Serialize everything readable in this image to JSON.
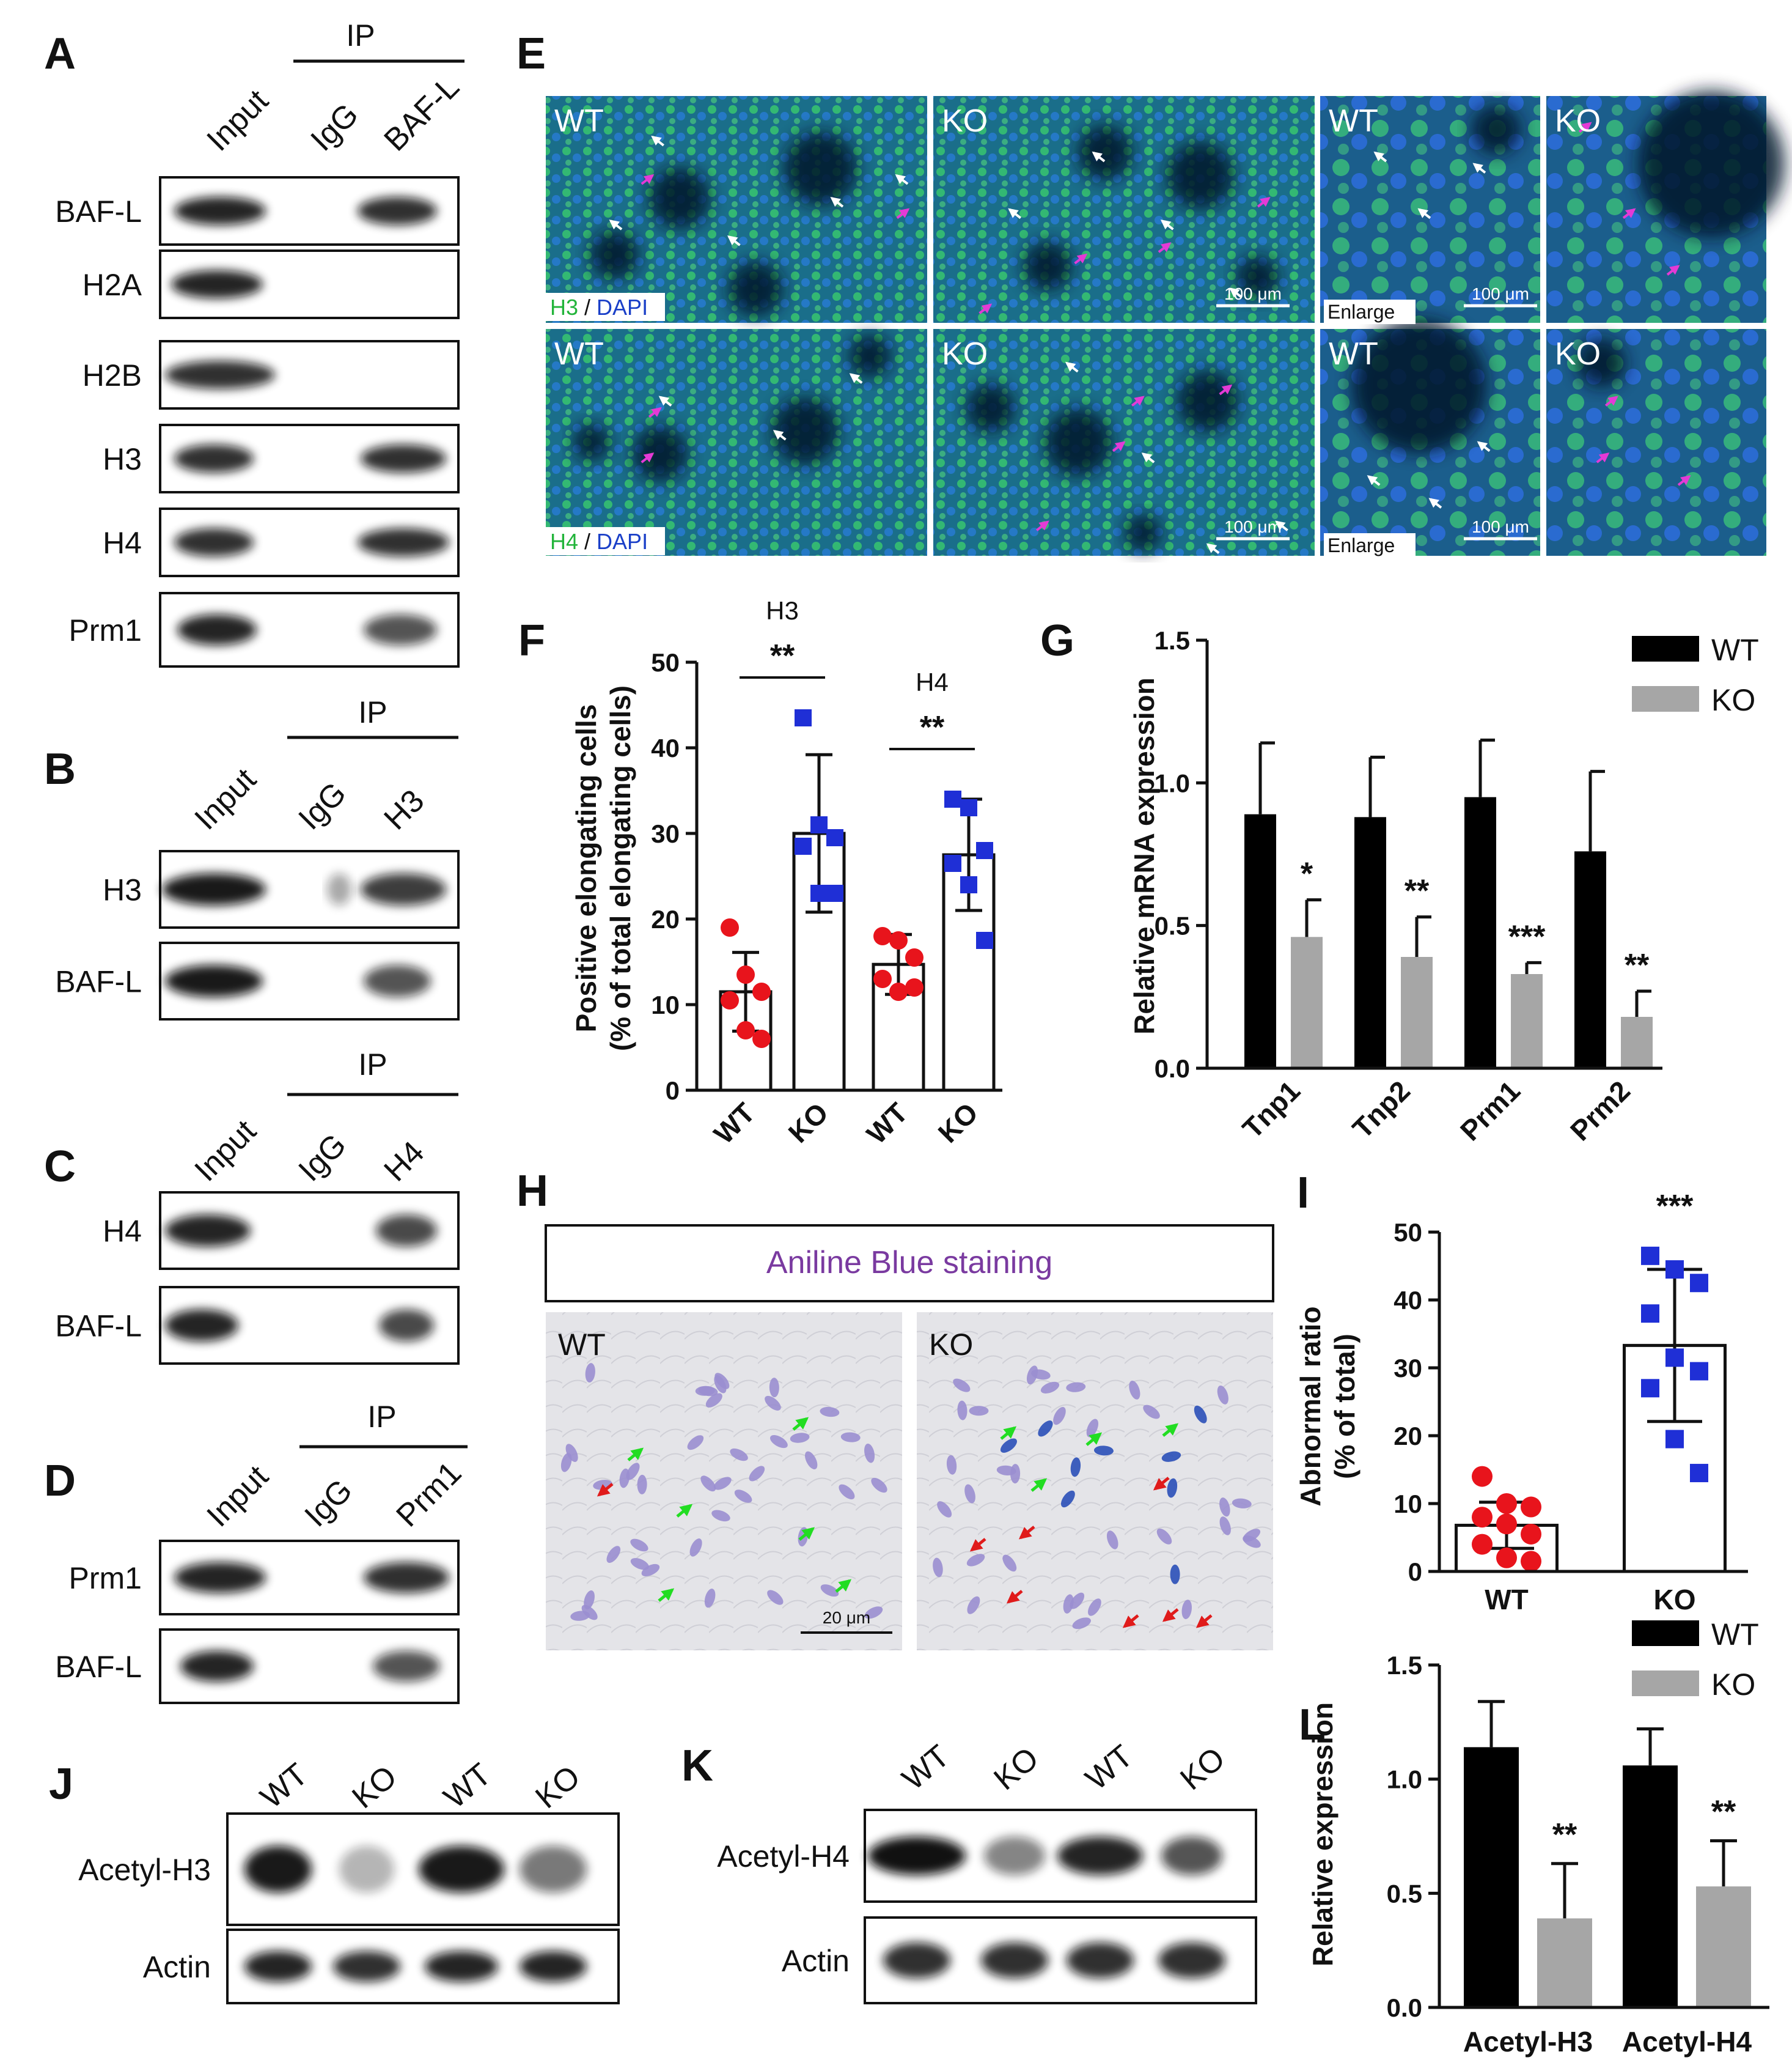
{
  "panels": {
    "A": {
      "letter": "A",
      "ip": "IP",
      "lanes": [
        "Input",
        "IgG",
        "BAF-L"
      ],
      "rows": [
        "BAF-L",
        "H2A",
        "H2B",
        "H3",
        "H4",
        "Prm1"
      ]
    },
    "B": {
      "letter": "B",
      "ip": "IP",
      "lanes": [
        "Input",
        "IgG",
        "H3"
      ],
      "rows": [
        "H3",
        "BAF-L"
      ]
    },
    "C": {
      "letter": "C",
      "ip": "IP",
      "lanes": [
        "Input",
        "IgG",
        "H4"
      ],
      "rows": [
        "H4",
        "BAF-L"
      ]
    },
    "D": {
      "letter": "D",
      "ip": "IP",
      "lanes": [
        "Input",
        "IgG",
        "Prm1"
      ],
      "rows": [
        "Prm1",
        "BAF-L"
      ]
    },
    "E": {
      "letter": "E",
      "tiles": [
        {
          "label": "WT"
        },
        {
          "label": "KO"
        },
        {
          "label": "WT"
        },
        {
          "label": "KO"
        },
        {
          "label": "WT"
        },
        {
          "label": "KO"
        },
        {
          "label": "WT"
        },
        {
          "label": "KO"
        }
      ],
      "stain_row1": [
        "H3",
        " / ",
        "DAPI"
      ],
      "stain_row2": [
        "H4",
        " / ",
        "DAPI"
      ],
      "scale": "100 μm",
      "enlarge": "Enlarge"
    },
    "H": {
      "letter": "H",
      "title": "Aniline Blue staining",
      "wt": "WT",
      "ko": "KO",
      "scale": "20 μm"
    },
    "J": {
      "letter": "J",
      "lanes": [
        "WT",
        "KO",
        "WT",
        "KO"
      ],
      "rows": [
        "Acetyl-H3",
        "Actin"
      ]
    },
    "K": {
      "letter": "K",
      "lanes": [
        "WT",
        "KO",
        "WT",
        "KO"
      ],
      "rows": [
        "Acetyl-H4",
        "Actin"
      ]
    }
  },
  "colors": {
    "wt_bar": "#000000",
    "ko_bar": "#a6a6a6",
    "wt_dot": "#e8141c",
    "ko_dot": "#1f2fd6",
    "if_green": "#2fbf4a",
    "if_blue": "#1a3fc8",
    "arrow_white": "#ffffff",
    "arrow_magenta": "#e43ad6",
    "arrow_green": "#22dd22",
    "arrow_red": "#e01b1b",
    "aniline_title": "#7a3aa0"
  },
  "chart_data": [
    {
      "panel": "F",
      "letter": "F",
      "type": "bar",
      "categories": [
        "WT",
        "KO",
        "WT",
        "KO"
      ],
      "ylabel": "Positive elongating cells",
      "ylabel2": "(% of total elongating cells)",
      "ylim": [
        0,
        50
      ],
      "yticks": [
        0,
        10,
        20,
        30,
        40,
        50
      ],
      "groups": [
        {
          "name": "H3",
          "sig": "**"
        },
        {
          "name": "H4",
          "sig": "**"
        }
      ],
      "values": [
        11.5,
        30,
        14.7,
        27.5
      ],
      "errors": [
        4.6,
        9.2,
        3.5,
        6.5
      ],
      "points": [
        [
          19,
          13.5,
          11.5,
          10.5,
          7,
          6
        ],
        [
          43.5,
          31,
          29.5,
          28.5,
          23,
          23
        ],
        [
          18,
          17.5,
          15.5,
          13,
          11.5,
          12
        ],
        [
          34,
          33,
          28,
          26.5,
          24,
          17.5
        ]
      ]
    },
    {
      "panel": "G",
      "letter": "G",
      "type": "bar",
      "categories": [
        "Tnp1",
        "Tnp2",
        "Prm1",
        "Prm2"
      ],
      "ylabel": "Relative mRNA expression",
      "ylim": [
        0,
        1.5
      ],
      "yticks": [
        "0.0",
        "0.5",
        "1.0",
        "1.5"
      ],
      "series": [
        {
          "name": "WT",
          "values": [
            0.89,
            0.88,
            0.95,
            0.76
          ],
          "errors": [
            0.25,
            0.21,
            0.2,
            0.28
          ]
        },
        {
          "name": "KO",
          "values": [
            0.46,
            0.39,
            0.33,
            0.18
          ],
          "errors": [
            0.13,
            0.14,
            0.04,
            0.09
          ]
        }
      ],
      "sig": [
        "*",
        "**",
        "***",
        "**"
      ]
    },
    {
      "panel": "I",
      "letter": "I",
      "type": "bar",
      "categories": [
        "WT",
        "KO"
      ],
      "ylabel": "Abnormal ratio",
      "ylabel2": "(% of total)",
      "ylim": [
        0,
        50
      ],
      "yticks": [
        0,
        10,
        20,
        30,
        40,
        50
      ],
      "values": [
        6.8,
        33.3
      ],
      "errors": [
        3.4,
        11.2
      ],
      "sig": "***",
      "points": [
        [
          14,
          10,
          9.5,
          8,
          7,
          5.5,
          4,
          2,
          1.5
        ],
        [
          46.5,
          44.5,
          42.5,
          38,
          31.5,
          29.5,
          27,
          19.5,
          14.5
        ]
      ]
    },
    {
      "panel": "L",
      "letter": "L",
      "type": "bar",
      "categories": [
        "Acetyl-H3",
        "Acetyl-H4"
      ],
      "ylabel": "Relative expression",
      "ylim": [
        0,
        1.5
      ],
      "yticks": [
        "0.0",
        "0.5",
        "1.0",
        "1.5"
      ],
      "series": [
        {
          "name": "WT",
          "values": [
            1.14,
            1.06
          ],
          "errors": [
            0.2,
            0.16
          ]
        },
        {
          "name": "KO",
          "values": [
            0.39,
            0.53
          ],
          "errors": [
            0.24,
            0.2
          ]
        }
      ],
      "sig": [
        "**",
        "**"
      ]
    }
  ]
}
